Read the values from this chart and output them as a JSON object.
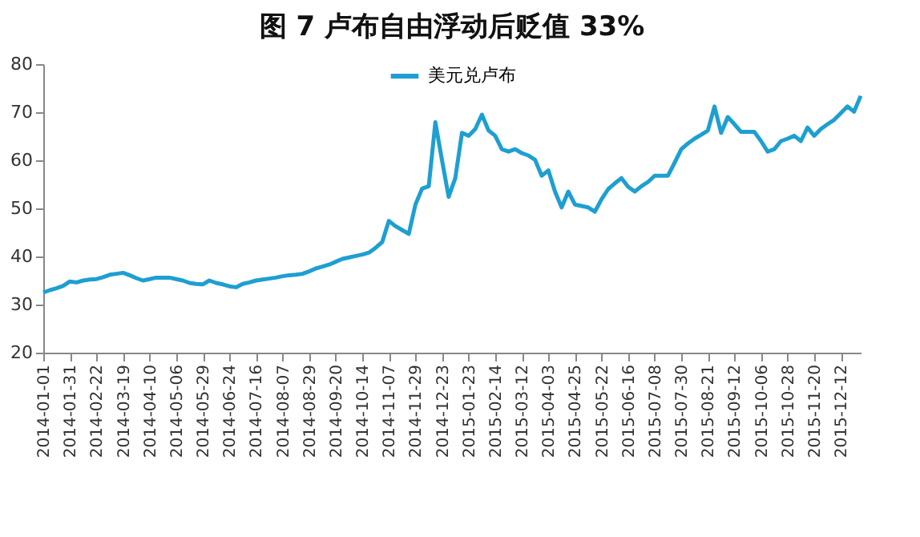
{
  "chart_data": {
    "type": "line",
    "title": "图 7  卢布自由浮动后贬值 33%",
    "categories": [
      "2014-01-01",
      null,
      null,
      null,
      "2014-01-31",
      null,
      null,
      null,
      "2014-02-22",
      null,
      null,
      null,
      "2014-03-19",
      null,
      null,
      null,
      "2014-04-10",
      null,
      null,
      null,
      "2014-05-06",
      null,
      null,
      null,
      "2014-05-29",
      null,
      null,
      null,
      "2014-06-24",
      null,
      null,
      null,
      "2014-07-16",
      null,
      null,
      null,
      "2014-08-07",
      null,
      null,
      null,
      "2014-08-29",
      null,
      null,
      null,
      "2014-09-20",
      null,
      null,
      null,
      "2014-10-14",
      null,
      null,
      null,
      "2014-11-07",
      null,
      null,
      null,
      "2014-11-29",
      null,
      null,
      null,
      "2014-12-23",
      null,
      null,
      null,
      "2015-01-23",
      null,
      null,
      null,
      "2015-02-14",
      null,
      null,
      null,
      "2015-03-12",
      null,
      null,
      null,
      "2015-04-03",
      null,
      null,
      null,
      "2015-04-25",
      null,
      null,
      null,
      "2015-05-22",
      null,
      null,
      null,
      "2015-06-16",
      null,
      null,
      null,
      "2015-07-08",
      null,
      null,
      null,
      "2015-07-30",
      null,
      null,
      null,
      "2015-08-21",
      null,
      null,
      null,
      "2015-09-12",
      null,
      null,
      null,
      "2015-10-06",
      null,
      null,
      null,
      "2015-10-28",
      null,
      null,
      null,
      "2015-11-20",
      null,
      null,
      null,
      "2015-12-12",
      null,
      null,
      null
    ],
    "series": [
      {
        "name": "美元兑卢布",
        "color": "#1e9fd2",
        "values": [
          32.5,
          33.0,
          33.4,
          33.9,
          34.8,
          34.6,
          35.0,
          35.2,
          35.3,
          35.7,
          36.2,
          36.4,
          36.6,
          36.1,
          35.5,
          35.0,
          35.3,
          35.6,
          35.6,
          35.6,
          35.3,
          35.0,
          34.5,
          34.3,
          34.2,
          35.0,
          34.5,
          34.2,
          33.8,
          33.6,
          34.3,
          34.6,
          35.0,
          35.2,
          35.4,
          35.6,
          35.9,
          36.1,
          36.2,
          36.4,
          36.9,
          37.5,
          37.9,
          38.3,
          38.9,
          39.5,
          39.8,
          40.1,
          40.4,
          40.8,
          41.8,
          43.0,
          47.4,
          46.3,
          45.5,
          44.7,
          50.8,
          54.1,
          54.6,
          67.9,
          60.0,
          52.4,
          56.3,
          65.7,
          65.1,
          66.5,
          69.5,
          66.2,
          65.1,
          62.3,
          61.8,
          62.3,
          61.5,
          61.0,
          60.1,
          56.8,
          57.9,
          53.5,
          50.2,
          53.5,
          50.8,
          50.5,
          50.2,
          49.3,
          51.9,
          54.0,
          55.2,
          56.3,
          54.5,
          53.5,
          54.6,
          55.5,
          56.8,
          56.8,
          56.8,
          59.5,
          62.3,
          63.5,
          64.5,
          65.3,
          66.2,
          71.2,
          65.7,
          69.0,
          67.5,
          65.9,
          65.9,
          65.9,
          64.0,
          61.8,
          62.3,
          64.0,
          64.5,
          65.1,
          64.0,
          66.8,
          65.1,
          66.5,
          67.5,
          68.4,
          69.8,
          71.2,
          70.1,
          73.4
        ]
      }
    ],
    "ylim": [
      20,
      80
    ],
    "yticks": [
      20,
      30,
      40,
      50,
      60,
      70,
      80
    ],
    "legend": "top"
  }
}
